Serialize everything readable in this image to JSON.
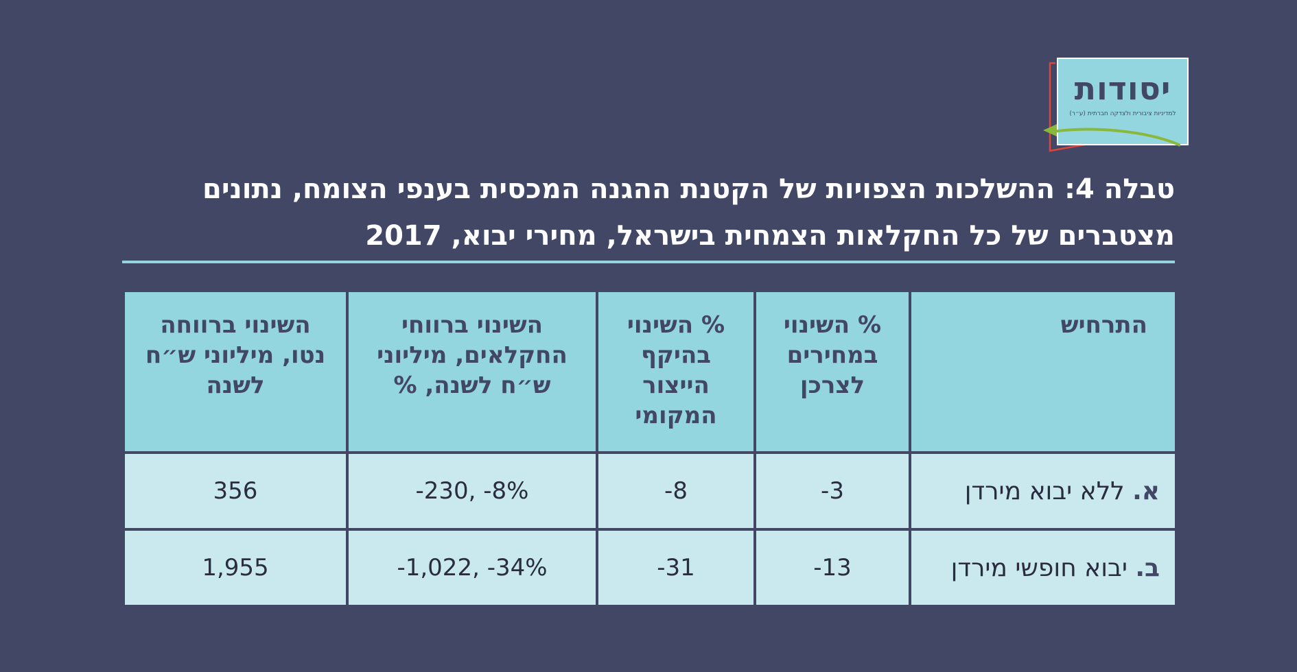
{
  "logo": {
    "name": "יסודות",
    "tagline": "למדיניות ציבורית ולצדקה חברתית (ע״ר)",
    "colors": {
      "box": "#93d6e0",
      "arrow": "#8ab83a",
      "frame": "#e0443a"
    }
  },
  "title": {
    "line1": "טבלה 4: ההשלכות הצפויות של הקטנת ההגנה המכסית בענפי הצומח, נתונים",
    "line2": "מצטברים של כל החקלאות הצמחית בישראל, מחירי יבוא, 2017"
  },
  "table": {
    "headers": [
      "התרחיש",
      "% השינוי במחירים לצרכן",
      "% השינוי בהיקף הייצור המקומי",
      "השינוי ברווחי החקלאים, מיליוני ש״ח לשנה, %",
      "השינוי ברווחה נטו, מיליוני ש״ח לשנה"
    ],
    "rows": [
      {
        "letter": "א.",
        "scenario": "ללא יבוא מירדן",
        "price_change": "-3",
        "production_change": "-8",
        "farmer_profit_change": "-230, -8%",
        "net_welfare_change": "356"
      },
      {
        "letter": "ב.",
        "scenario": "יבוא חופשי מירדן",
        "price_change": "-13",
        "production_change": "-31",
        "farmer_profit_change": "-1,022, -34%",
        "net_welfare_change": "1,955"
      }
    ]
  },
  "colors": {
    "background": "#434766",
    "header_cell": "#93d6e0",
    "body_cell": "#c9e9ef",
    "title_text": "#ffffff",
    "rule": "#93d6e0"
  }
}
